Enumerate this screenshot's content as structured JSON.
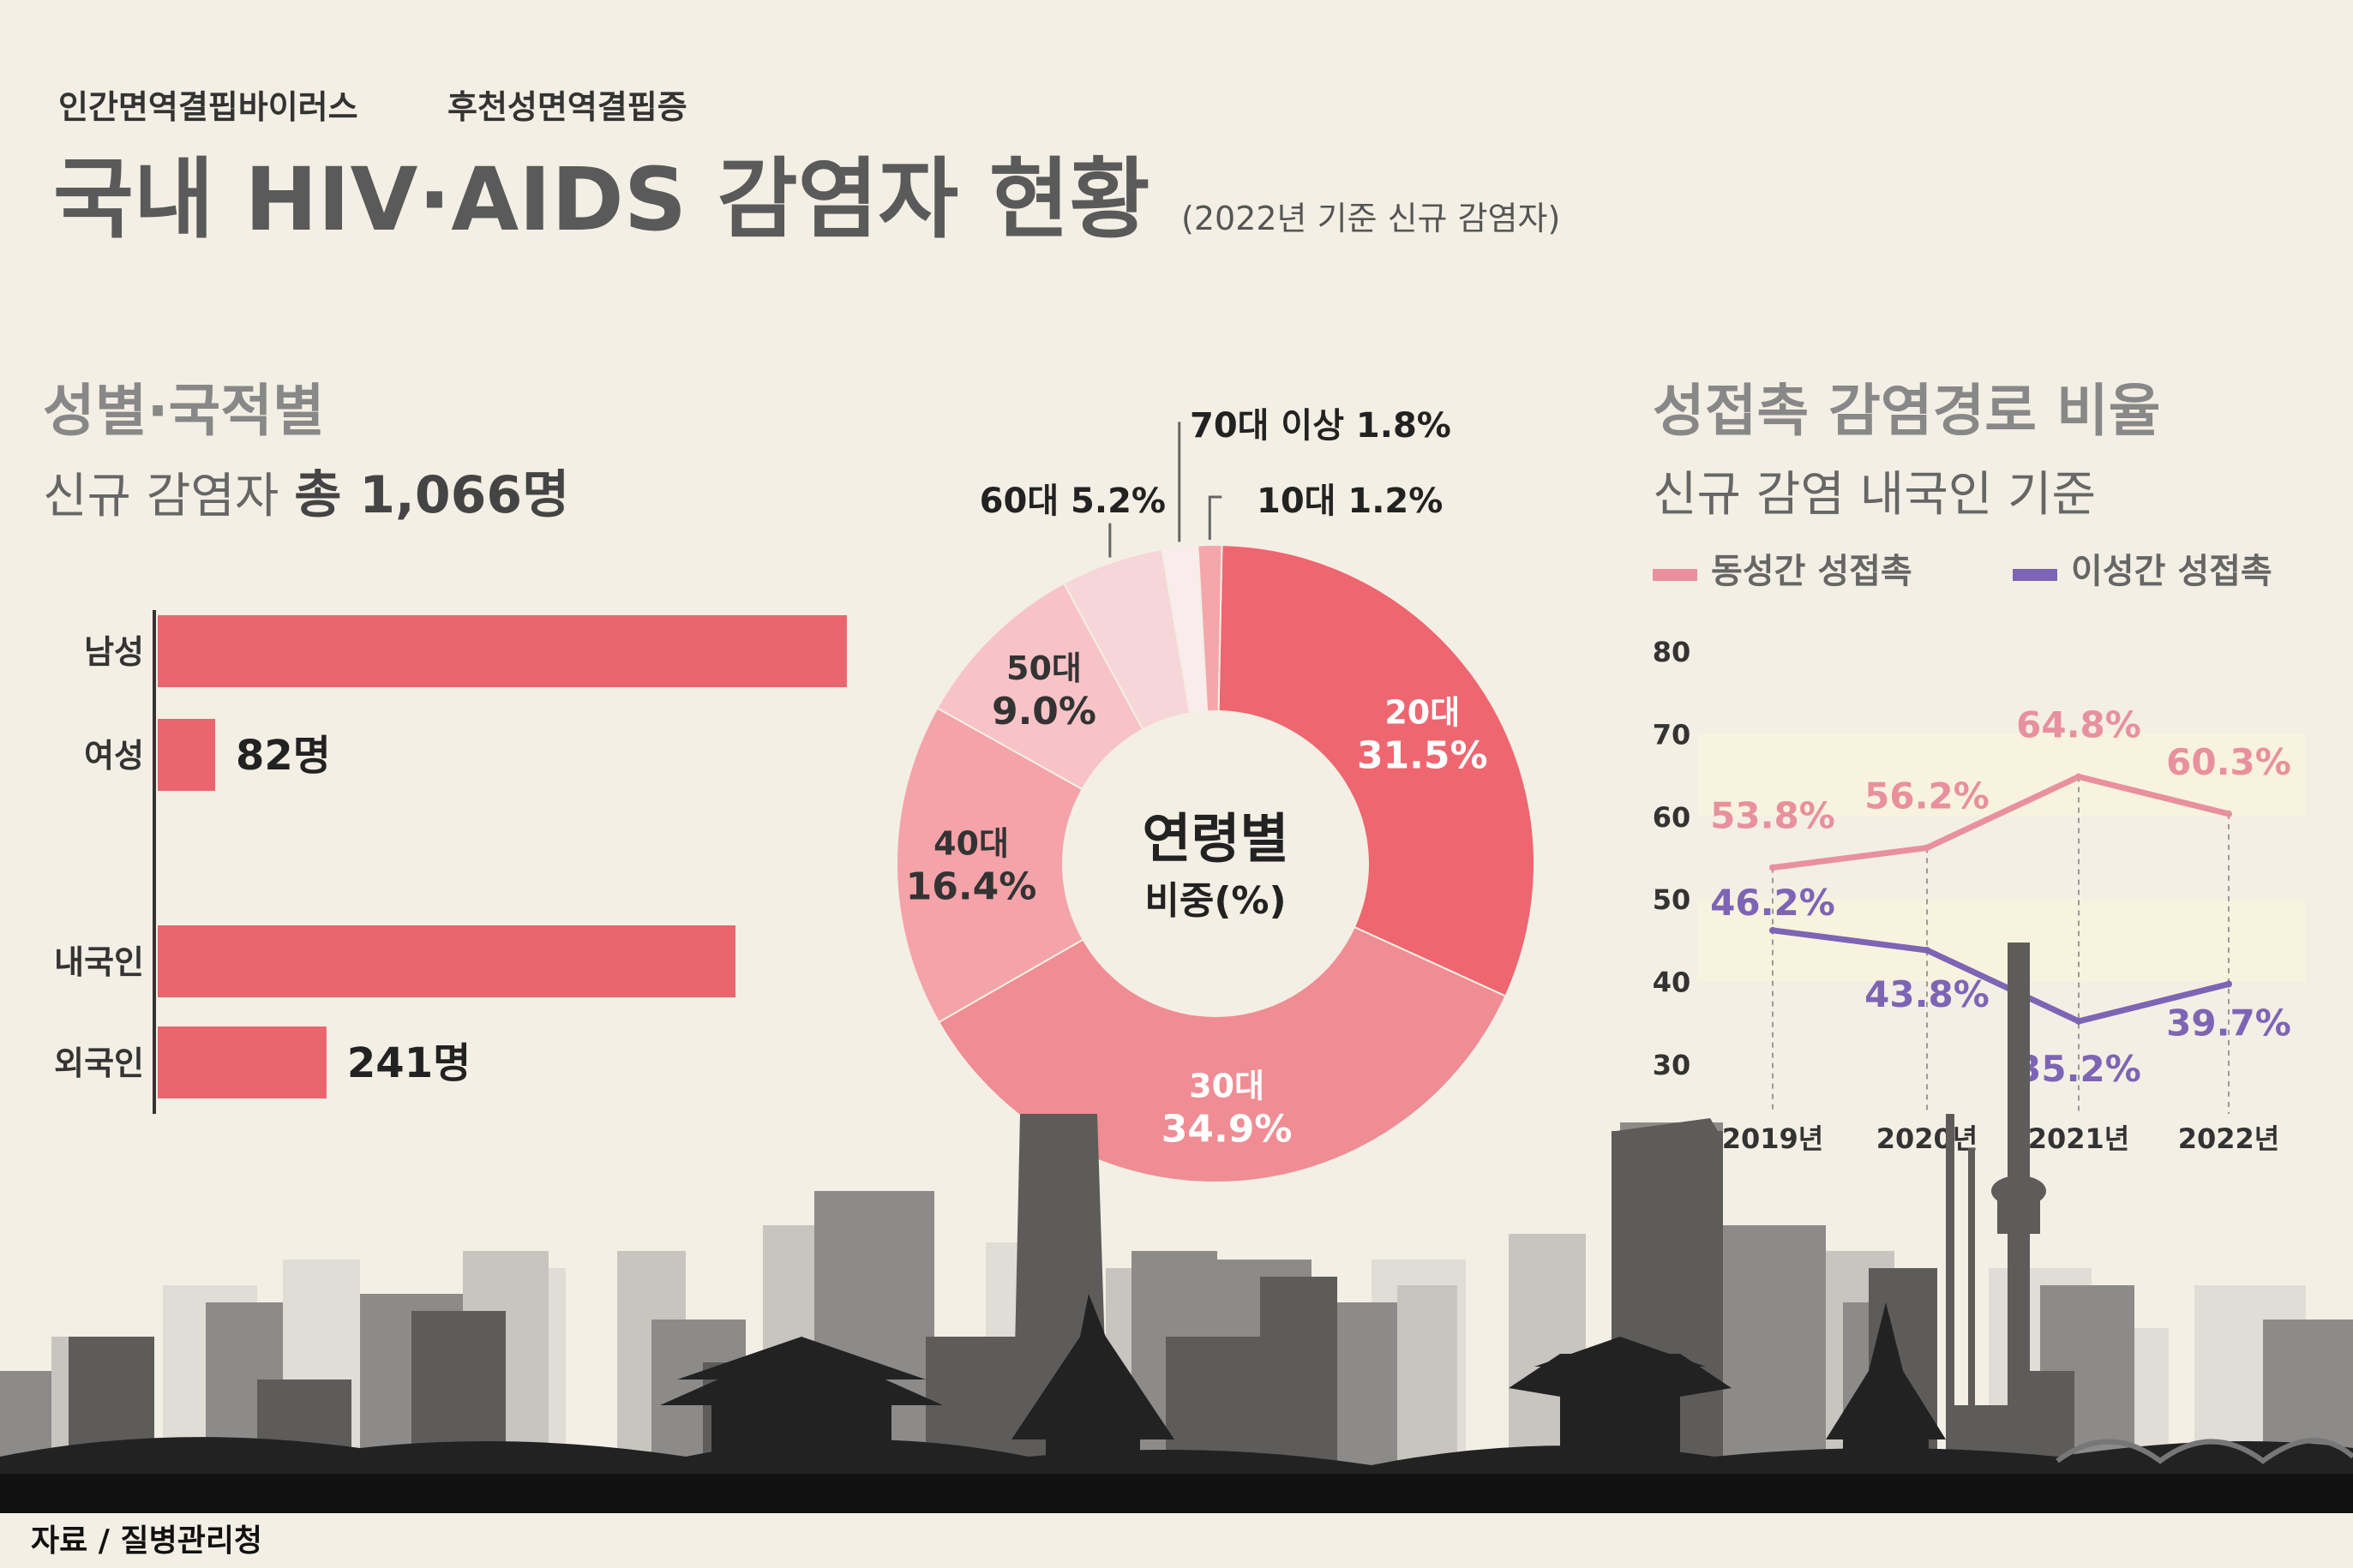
{
  "header": {
    "kicker1": "인간면역결핍바이러스",
    "kicker2": "후천성면역결핍증",
    "title": "국내 HIV·AIDS 감염자 현황",
    "note": "(2022년 기준 신규 감염자)"
  },
  "gender_section": {
    "heading": "성별·국적별",
    "sub_prefix": "신규 감염자 ",
    "sub_total": "총 1,066명"
  },
  "age_section": {
    "center_title": "연령별",
    "center_sub": "비중(%)"
  },
  "route_section": {
    "heading": "성접촉 감염경로 비율",
    "sub": "신규 감염 내국인 기준"
  },
  "source": "자료 / 질병관리청",
  "colors": {
    "background": "#f3efe4",
    "bar": "#e9666f",
    "same_sex": "#e8909e",
    "hetero": "#7e64b5"
  },
  "chart_data": [
    {
      "type": "bar",
      "orientation": "horizontal",
      "categories": [
        "남성",
        "여성",
        "내국인",
        "외국인"
      ],
      "values": [
        984,
        82,
        825,
        241
      ],
      "labels": [
        "",
        "82명",
        "",
        "241명"
      ],
      "xlim": [
        0,
        1000
      ]
    },
    {
      "type": "pie",
      "donut": true,
      "categories": [
        "20대",
        "30대",
        "40대",
        "50대",
        "60대",
        "70대 이상",
        "10대"
      ],
      "values": [
        31.5,
        34.9,
        16.4,
        9.0,
        5.2,
        1.8,
        1.2
      ],
      "labels": [
        "31.5%",
        "34.9%",
        "16.4%",
        "9.0%",
        "5.2%",
        "1.8%",
        "1.2%"
      ],
      "colors": [
        "#ee6670",
        "#f08c93",
        "#f4a3a9",
        "#f8c3c7",
        "#f6d6d9",
        "#faebec",
        "#f5a6ab"
      ]
    },
    {
      "type": "line",
      "x": [
        "2019년",
        "2020년",
        "2021년",
        "2022년"
      ],
      "series": [
        {
          "name": "동성간 성접촉",
          "values": [
            53.8,
            56.2,
            64.8,
            60.3
          ],
          "labels": [
            "53.8%",
            "56.2%",
            "64.8%",
            "60.3%"
          ],
          "color": "#e8909e"
        },
        {
          "name": "이성간 성접촉",
          "values": [
            46.2,
            43.8,
            35.2,
            39.7
          ],
          "labels": [
            "46.2%",
            "43.8%",
            "35.2%",
            "39.7%"
          ],
          "color": "#7e64b5"
        }
      ],
      "yticks": [
        "80",
        "70",
        "60",
        "50",
        "40",
        "30"
      ],
      "ylim": [
        30,
        80
      ],
      "bands": [
        [
          60,
          70
        ],
        [
          40,
          50
        ]
      ]
    }
  ]
}
